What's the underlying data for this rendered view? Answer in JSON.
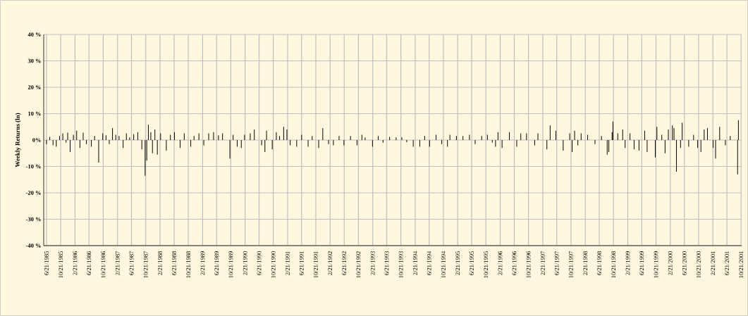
{
  "chart_data": {
    "type": "bar",
    "ylabel": "Weekly Returns (ln)",
    "color": "#000000",
    "grid": true,
    "xlim": [
      "1985-05-28",
      "2001-10-26"
    ],
    "ylim": [
      -40,
      40
    ],
    "yticks": [
      {
        "value": -40,
        "label": "-40 %"
      },
      {
        "value": -30,
        "label": "-30 %"
      },
      {
        "value": -20,
        "label": "-20 %"
      },
      {
        "value": -10,
        "label": "-10 %"
      },
      {
        "value": 0,
        "label": "0%"
      },
      {
        "value": 10,
        "label": "10 %"
      },
      {
        "value": 20,
        "label": "20 %"
      },
      {
        "value": 30,
        "label": "30 %"
      },
      {
        "value": 40,
        "label": "40 %"
      }
    ],
    "xticks": [
      {
        "value": "1985-06-21",
        "label": "6/21/1985"
      },
      {
        "value": "1985-10-21",
        "label": "10/21/1985"
      },
      {
        "value": "1986-02-21",
        "label": "2/21/1986"
      },
      {
        "value": "1986-06-21",
        "label": "6/21/1986"
      },
      {
        "value": "1986-10-21",
        "label": "10/21/1986"
      },
      {
        "value": "1987-02-21",
        "label": "2/21/1987"
      },
      {
        "value": "1987-06-21",
        "label": "6/21/1987"
      },
      {
        "value": "1987-10-21",
        "label": "10/21/1987"
      },
      {
        "value": "1988-02-21",
        "label": "2/21/1988"
      },
      {
        "value": "1988-06-21",
        "label": "6/21/1988"
      },
      {
        "value": "1988-10-21",
        "label": "10/21/1988"
      },
      {
        "value": "1989-02-21",
        "label": "2/21/1989"
      },
      {
        "value": "1989-06-21",
        "label": "6/21/1989"
      },
      {
        "value": "1989-10-21",
        "label": "10/21/1989"
      },
      {
        "value": "1990-02-21",
        "label": "2/21/1990"
      },
      {
        "value": "1990-06-21",
        "label": "6/21/1990"
      },
      {
        "value": "1990-10-21",
        "label": "10/21/1990"
      },
      {
        "value": "1991-02-21",
        "label": "2/21/1991"
      },
      {
        "value": "1991-06-21",
        "label": "6/21/1991"
      },
      {
        "value": "1991-10-21",
        "label": "10/21/1991"
      },
      {
        "value": "1992-02-21",
        "label": "2/21/1992"
      },
      {
        "value": "1992-06-21",
        "label": "6/21/1992"
      },
      {
        "value": "1992-10-21",
        "label": "10/21/1992"
      },
      {
        "value": "1993-02-21",
        "label": "2/21/1993"
      },
      {
        "value": "1993-06-21",
        "label": "6/21/1993"
      },
      {
        "value": "1993-10-21",
        "label": "10/21/1993"
      },
      {
        "value": "1994-02-21",
        "label": "2/21/1994"
      },
      {
        "value": "1994-06-21",
        "label": "6/21/1994"
      },
      {
        "value": "1994-10-21",
        "label": "10/21/1994"
      },
      {
        "value": "1995-02-21",
        "label": "2/21/1995"
      },
      {
        "value": "1995-06-21",
        "label": "6/21/1995"
      },
      {
        "value": "1995-10-21",
        "label": "10/21/1995"
      },
      {
        "value": "1996-02-21",
        "label": "2/21/1996"
      },
      {
        "value": "1996-06-21",
        "label": "6/21/1996"
      },
      {
        "value": "1996-10-21",
        "label": "10/21/1996"
      },
      {
        "value": "1997-02-21",
        "label": "2/21/1997"
      },
      {
        "value": "1997-06-21",
        "label": "6/21/1997"
      },
      {
        "value": "1997-10-21",
        "label": "10/21/1997"
      },
      {
        "value": "1998-02-21",
        "label": "2/21/1998"
      },
      {
        "value": "1998-06-21",
        "label": "6/21/1998"
      },
      {
        "value": "1998-10-21",
        "label": "10/21/1998"
      },
      {
        "value": "1999-02-21",
        "label": "2/21/1999"
      },
      {
        "value": "1999-06-21",
        "label": "6/21/1999"
      },
      {
        "value": "1999-10-21",
        "label": "10/21/1999"
      },
      {
        "value": "2000-02-21",
        "label": "2/21/2000"
      },
      {
        "value": "2000-06-21",
        "label": "6/21/2000"
      },
      {
        "value": "2000-10-21",
        "label": "10/21/2000"
      },
      {
        "value": "2001-02-21",
        "label": "2/21/2001"
      },
      {
        "value": "2001-06-21",
        "label": "6/21/2001"
      },
      {
        "value": "2001-10-21",
        "label": "10/21/2001"
      }
    ],
    "x": [
      "1985-06-21",
      "1985-07-19",
      "1985-08-16",
      "1985-09-13",
      "1985-10-11",
      "1985-11-08",
      "1985-12-06",
      "1985-12-20",
      "1986-01-10",
      "1986-02-07",
      "1986-03-07",
      "1986-04-04",
      "1986-05-02",
      "1986-05-30",
      "1986-07-11",
      "1986-08-08",
      "1986-09-12",
      "1986-10-17",
      "1986-11-14",
      "1986-12-12",
      "1987-01-09",
      "1987-02-06",
      "1987-03-06",
      "1987-04-10",
      "1987-05-08",
      "1987-06-05",
      "1987-07-10",
      "1987-08-14",
      "1987-09-18",
      "1987-10-16",
      "1987-10-30",
      "1987-11-13",
      "1987-12-04",
      "1987-12-18",
      "1988-01-08",
      "1988-01-29",
      "1988-02-26",
      "1988-04-15",
      "1988-05-20",
      "1988-06-24",
      "1988-08-12",
      "1988-09-16",
      "1988-11-11",
      "1988-12-09",
      "1989-01-20",
      "1989-03-03",
      "1989-04-14",
      "1989-05-26",
      "1989-07-07",
      "1989-08-11",
      "1989-10-13",
      "1989-11-10",
      "1989-12-15",
      "1990-01-19",
      "1990-02-16",
      "1990-04-06",
      "1990-05-11",
      "1990-07-13",
      "1990-08-10",
      "1990-08-24",
      "1990-10-12",
      "1990-11-16",
      "1990-12-14",
      "1991-01-18",
      "1991-02-15",
      "1991-03-15",
      "1991-05-10",
      "1991-06-21",
      "1991-08-16",
      "1991-09-20",
      "1991-11-15",
      "1991-12-20",
      "1992-02-07",
      "1992-03-20",
      "1992-05-08",
      "1992-06-19",
      "1992-08-14",
      "1992-10-09",
      "1992-11-20",
      "1992-12-18",
      "1993-02-19",
      "1993-04-09",
      "1993-05-21",
      "1993-07-16",
      "1993-09-10",
      "1993-10-29",
      "1993-12-10",
      "1994-02-04",
      "1994-04-01",
      "1994-05-13",
      "1994-06-24",
      "1994-08-19",
      "1994-10-07",
      "1994-11-25",
      "1994-12-16",
      "1995-02-10",
      "1995-04-07",
      "1995-06-02",
      "1995-07-21",
      "1995-09-15",
      "1995-11-03",
      "1995-12-15",
      "1996-01-12",
      "1996-02-02",
      "1996-03-08",
      "1996-05-10",
      "1996-07-12",
      "1996-08-16",
      "1996-10-04",
      "1996-12-13",
      "1997-01-10",
      "1997-03-28",
      "1997-04-25",
      "1997-06-13",
      "1997-08-15",
      "1997-10-10",
      "1997-10-31",
      "1997-11-21",
      "1997-12-19",
      "1998-01-16",
      "1998-03-13",
      "1998-05-15",
      "1998-07-10",
      "1998-08-28",
      "1998-09-11",
      "1998-10-09",
      "1998-10-16",
      "1998-11-27",
      "1999-01-08",
      "1999-01-29",
      "1999-03-12",
      "1999-04-16",
      "1999-05-28",
      "1999-07-16",
      "1999-08-06",
      "1999-10-15",
      "1999-10-29",
      "1999-12-10",
      "2000-01-07",
      "2000-02-04",
      "2000-03-10",
      "2000-03-24",
      "2000-04-14",
      "2000-05-19",
      "2000-06-02",
      "2000-07-28",
      "2000-09-08",
      "2000-10-13",
      "2000-11-10",
      "2000-12-08",
      "2001-01-05",
      "2001-02-23",
      "2001-03-16",
      "2001-04-20",
      "2001-06-08",
      "2001-07-20",
      "2001-09-21",
      "2001-09-28"
    ],
    "values": [
      -1.5,
      1.2,
      -2.0,
      -2.5,
      1.5,
      2.5,
      -1.0,
      2.8,
      -4.5,
      2.0,
      3.5,
      -3.0,
      2.8,
      -1.5,
      -2.5,
      1.5,
      -8.5,
      2.5,
      1.8,
      -1.5,
      4.5,
      2.0,
      1.5,
      -3.0,
      2.5,
      1.0,
      2.2,
      3.0,
      -3.5,
      -13.5,
      -7.8,
      5.8,
      3.0,
      -5.0,
      4.0,
      -5.5,
      2.5,
      -4.0,
      2.0,
      3.0,
      -3.0,
      2.5,
      -2.5,
      1.5,
      2.5,
      -2.0,
      2.5,
      3.0,
      1.8,
      2.5,
      -7.0,
      2.0,
      -2.5,
      -3.0,
      2.0,
      2.5,
      4.0,
      -2.0,
      -4.5,
      3.5,
      -3.5,
      3.0,
      1.5,
      5.0,
      4.0,
      -2.0,
      -2.5,
      2.0,
      -2.5,
      1.5,
      -3.0,
      4.5,
      -1.5,
      -2.0,
      1.5,
      -2.0,
      1.5,
      -2.0,
      2.0,
      1.0,
      -2.5,
      1.5,
      -1.0,
      1.2,
      1.0,
      1.0,
      -0.8,
      -2.5,
      -2.5,
      1.5,
      -2.5,
      2.0,
      -1.5,
      -2.5,
      2.0,
      1.5,
      1.5,
      2.0,
      -1.5,
      1.5,
      2.0,
      -1.0,
      -2.5,
      3.0,
      -3.0,
      3.0,
      -2.5,
      2.5,
      2.5,
      -2.0,
      2.5,
      -3.5,
      5.5,
      3.5,
      -4.0,
      2.5,
      -4.5,
      3.5,
      -2.0,
      2.5,
      2.0,
      -1.5,
      1.5,
      -5.5,
      -4.5,
      3.0,
      7.0,
      2.5,
      4.0,
      -3.0,
      2.5,
      -3.5,
      -4.0,
      3.5,
      -4.5,
      -6.5,
      5.0,
      2.0,
      -5.0,
      4.0,
      5.5,
      4.5,
      -12.0,
      -3.0,
      6.5,
      -2.5,
      2.0,
      -3.0,
      -4.5,
      4.0,
      4.5,
      -3.0,
      -7.0,
      5.0,
      -2.0,
      1.5,
      -13.0,
      7.5
    ]
  }
}
